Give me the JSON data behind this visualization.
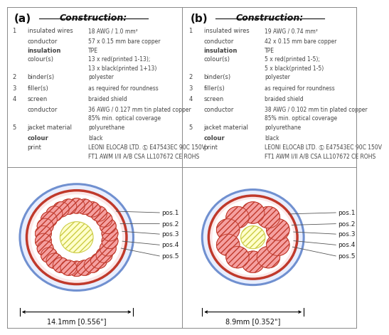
{
  "panel_a": {
    "title": "Construction:",
    "label": "(a)",
    "rows": [
      {
        "num": "1",
        "left": "insulated wires",
        "right": "18 AWG / 1.0 mm²",
        "bold": false
      },
      {
        "num": "",
        "left": "conductor",
        "right": "57 x 0.15 mm bare copper",
        "bold": false
      },
      {
        "num": "",
        "left": "insulation",
        "right": "TPE",
        "bold": true
      },
      {
        "num": "",
        "left": "colour(s)",
        "right": "13 x red(printed 1-13);",
        "bold": false
      },
      {
        "num": "",
        "left": "",
        "right": "13 x black(printed 1+13)",
        "bold": false
      },
      {
        "num": "2",
        "left": "binder(s)",
        "right": "polyester",
        "bold": false
      },
      {
        "num": "3",
        "left": "filler(s)",
        "right": "as required for roundness",
        "bold": false
      },
      {
        "num": "4",
        "left": "screen",
        "right": "braided shield",
        "bold": false
      },
      {
        "num": "",
        "left": "conductor",
        "right": "36 AWG / 0.127 mm tin plated copper",
        "bold": false
      },
      {
        "num": "",
        "left": "",
        "right": "85% min. optical coverage",
        "bold": false
      },
      {
        "num": "5",
        "left": "jacket material",
        "right": "polyurethane",
        "bold": false
      },
      {
        "num": "",
        "left": "colour",
        "right": "black",
        "bold": true
      },
      {
        "num": "",
        "left": "print",
        "right": "LEONI ELOCAB LTD. Ⓛ E47543EC 90C 150V",
        "bold": false
      },
      {
        "num": "",
        "left": "",
        "right": "FT1 AWM I/II A/B CSA LL107672 CE ROHS",
        "bold": false
      }
    ],
    "diagram": {
      "n_wires": 26,
      "outer_jacket_r": 0.335,
      "shield_outer_r": 0.295,
      "shield_inner_r": 0.27,
      "binder_r": 0.258,
      "wire_ring_r": 0.198,
      "wire_r": 0.048,
      "filler_r": 0.098,
      "dimension": "14.1mm [0.556\"]"
    }
  },
  "panel_b": {
    "title": "Construction:",
    "label": "(b)",
    "rows": [
      {
        "num": "1",
        "left": "insulated wires",
        "right": "19 AWG / 0.74 mm²",
        "bold": false
      },
      {
        "num": "",
        "left": "conductor",
        "right": "42 x 0.15 mm bare copper",
        "bold": false
      },
      {
        "num": "",
        "left": "insulation",
        "right": "TPE",
        "bold": true
      },
      {
        "num": "",
        "left": "colour(s)",
        "right": "5 x red(printed 1-5);",
        "bold": false
      },
      {
        "num": "",
        "left": "",
        "right": "5 x black(printed 1-5)",
        "bold": false
      },
      {
        "num": "2",
        "left": "binder(s)",
        "right": "polyester",
        "bold": false
      },
      {
        "num": "3",
        "left": "filler(s)",
        "right": "as required for roundness",
        "bold": false
      },
      {
        "num": "4",
        "left": "screen",
        "right": "braided shield",
        "bold": false
      },
      {
        "num": "",
        "left": "conductor",
        "right": "38 AWG / 0.102 mm tin plated copper",
        "bold": false
      },
      {
        "num": "",
        "left": "",
        "right": "85% min. optical coverage",
        "bold": false
      },
      {
        "num": "5",
        "left": "jacket material",
        "right": "polyurethane",
        "bold": false
      },
      {
        "num": "",
        "left": "colour",
        "right": "black",
        "bold": true
      },
      {
        "num": "",
        "left": "print",
        "right": "LEONI ELOCAB LTD. Ⓛ E47543EC 90C 150V",
        "bold": false
      },
      {
        "num": "",
        "left": "",
        "right": "FT1 AWM I/II A/B CSA LL107672 CE ROHS",
        "bold": false
      }
    ],
    "diagram": {
      "n_wires": 10,
      "outer_jacket_r": 0.3,
      "shield_outer_r": 0.262,
      "shield_inner_r": 0.24,
      "binder_r": 0.228,
      "wire_ring_r": 0.155,
      "wire_r": 0.068,
      "filler_r": 0.072,
      "dimension": "8.9mm [0.352\"]"
    }
  },
  "bg_color": "#ffffff",
  "wire_fill": "#f5a0a0",
  "wire_edge": "#c0392b",
  "jacket_color": "#7090d0",
  "shield_color": "#c0392b",
  "binder_color": "#27ae60",
  "filler_fill": "#ffffcc",
  "filler_edge": "#cccc44"
}
